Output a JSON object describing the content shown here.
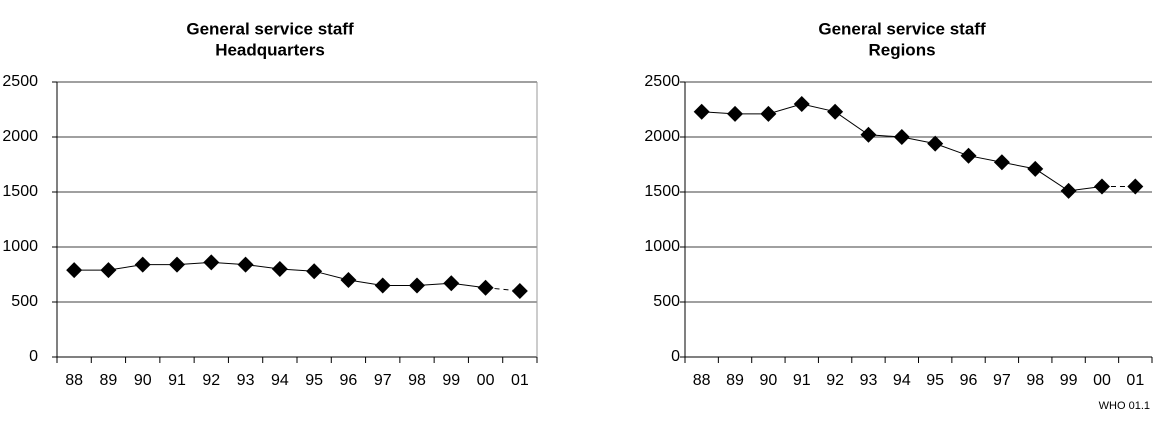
{
  "chart_data": [
    {
      "type": "line",
      "title": "General service staff",
      "subtitle": "Headquarters",
      "categories": [
        "88",
        "89",
        "90",
        "91",
        "92",
        "93",
        "94",
        "95",
        "96",
        "97",
        "98",
        "99",
        "00",
        "01"
      ],
      "values": [
        790,
        790,
        840,
        840,
        860,
        840,
        800,
        780,
        700,
        650,
        650,
        670,
        630,
        600
      ],
      "color": "#000000",
      "ylim": [
        0,
        2500
      ],
      "yticks": [
        0,
        500,
        1000,
        1500,
        2000,
        2500
      ],
      "grid": true,
      "dashed_last_segment": true
    },
    {
      "type": "line",
      "title": "General service staff",
      "subtitle": "Regions",
      "categories": [
        "88",
        "89",
        "90",
        "91",
        "92",
        "93",
        "94",
        "95",
        "96",
        "97",
        "98",
        "99",
        "00",
        "01"
      ],
      "values": [
        2230,
        2210,
        2210,
        2300,
        2230,
        2020,
        2000,
        1940,
        1830,
        1770,
        1710,
        1510,
        1550,
        1550
      ],
      "color": "#000000",
      "ylim": [
        0,
        2500
      ],
      "yticks": [
        0,
        500,
        1000,
        1500,
        2000,
        2500
      ],
      "grid": true,
      "dashed_last_segment": true
    }
  ],
  "footer": "WHO 01.1"
}
